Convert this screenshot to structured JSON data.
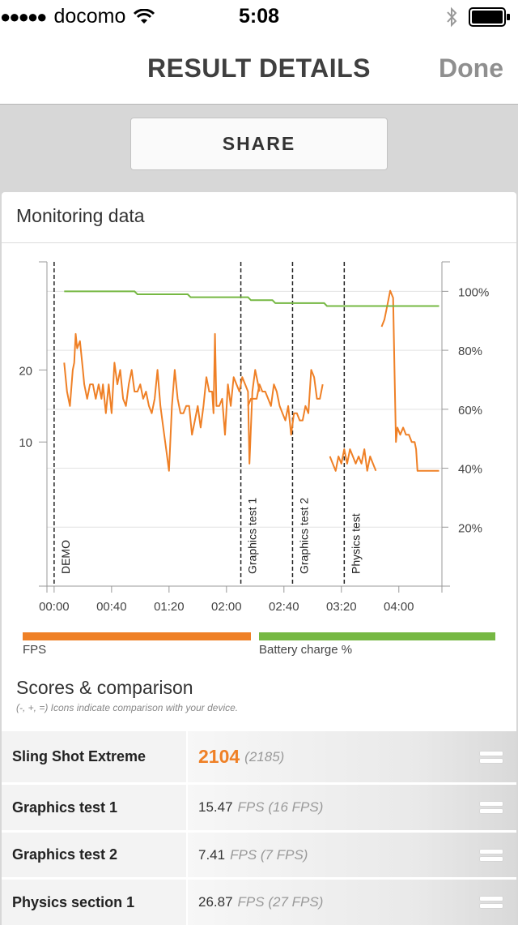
{
  "status_bar": {
    "signal": "●●●●●",
    "carrier": "docomo",
    "time": "5:08"
  },
  "nav": {
    "title": "RESULT DETAILS",
    "done": "Done"
  },
  "share_button": "SHARE",
  "monitoring": {
    "title": "Monitoring data"
  },
  "chart_data": {
    "type": "line",
    "x_ticks": [
      "00:00",
      "00:40",
      "01:20",
      "02:00",
      "02:40",
      "03:20",
      "04:00"
    ],
    "y_left_ticks": [
      "10",
      "20"
    ],
    "y_right_ticks": [
      "20%",
      "40%",
      "60%",
      "80%",
      "100%"
    ],
    "x_range_seconds": [
      -5,
      270
    ],
    "y_left_range": [
      -10,
      35
    ],
    "y_right_range": [
      0,
      110
    ],
    "markers": [
      {
        "label": "DEMO",
        "time": "00:00"
      },
      {
        "label": "Graphics test 1",
        "time": "02:10"
      },
      {
        "label": "Graphics test 2",
        "time": "02:46"
      },
      {
        "label": "Physics test",
        "time": "03:22"
      }
    ],
    "series": [
      {
        "name": "FPS",
        "color": "#ef8026",
        "segments": [
          [
            [
              7,
              21
            ],
            [
              9,
              17
            ],
            [
              11,
              15
            ],
            [
              13,
              20
            ],
            [
              14,
              21
            ],
            [
              15,
              25
            ],
            [
              16,
              23
            ],
            [
              18,
              24
            ],
            [
              20,
              20
            ],
            [
              21,
              18
            ],
            [
              23,
              16
            ],
            [
              25,
              18
            ],
            [
              27,
              18
            ],
            [
              29,
              16
            ],
            [
              31,
              18
            ],
            [
              33,
              16
            ],
            [
              34,
              18
            ],
            [
              36,
              14
            ],
            [
              38,
              18
            ],
            [
              40,
              14
            ],
            [
              42,
              21
            ],
            [
              44,
              18
            ],
            [
              46,
              20
            ],
            [
              48,
              16
            ],
            [
              50,
              15
            ],
            [
              52,
              18
            ],
            [
              54,
              20
            ],
            [
              56,
              17
            ],
            [
              58,
              17
            ],
            [
              60,
              18
            ],
            [
              62,
              16
            ],
            [
              64,
              17
            ],
            [
              66,
              15
            ],
            [
              68,
              14
            ],
            [
              70,
              16
            ],
            [
              72,
              20
            ],
            [
              74,
              15
            ],
            [
              76,
              12
            ],
            [
              78,
              9
            ],
            [
              80,
              6
            ],
            [
              82,
              15
            ],
            [
              84,
              20
            ],
            [
              86,
              16
            ],
            [
              88,
              14
            ],
            [
              90,
              14
            ],
            [
              92,
              15
            ],
            [
              94,
              15
            ],
            [
              96,
              11
            ],
            [
              98,
              13
            ],
            [
              100,
              15
            ],
            [
              102,
              12
            ],
            [
              104,
              15
            ],
            [
              106,
              19
            ],
            [
              108,
              17
            ],
            [
              110,
              17
            ],
            [
              111,
              14
            ],
            [
              112,
              25
            ],
            [
              113,
              15
            ],
            [
              115,
              15
            ],
            [
              117,
              16
            ],
            [
              119,
              11
            ],
            [
              121,
              18
            ],
            [
              123,
              15
            ],
            [
              125,
              19
            ],
            [
              127,
              18
            ],
            [
              129,
              17
            ],
            [
              131,
              19
            ],
            [
              133,
              18
            ],
            [
              135,
              17
            ],
            [
              136,
              7
            ],
            [
              138,
              17
            ],
            [
              140,
              20
            ],
            [
              142,
              18
            ],
            [
              143,
              17
            ]
          ],
          [
            [
              135,
              15
            ],
            [
              137,
              16
            ],
            [
              139,
              16
            ],
            [
              141,
              16
            ],
            [
              143,
              18
            ],
            [
              145,
              17
            ],
            [
              147,
              17
            ],
            [
              149,
              16
            ],
            [
              151,
              15
            ],
            [
              153,
              18
            ],
            [
              155,
              17
            ],
            [
              157,
              15
            ],
            [
              159,
              14
            ],
            [
              161,
              13
            ],
            [
              163,
              15
            ],
            [
              165,
              11
            ],
            [
              167,
              14
            ],
            [
              169,
              14
            ],
            [
              171,
              13
            ],
            [
              173,
              13
            ],
            [
              175,
              15
            ],
            [
              177,
              14
            ],
            [
              179,
              20
            ],
            [
              181,
              19
            ],
            [
              183,
              16
            ],
            [
              185,
              16
            ],
            [
              187,
              18
            ]
          ],
          [
            [
              192,
              8
            ],
            [
              194,
              7
            ],
            [
              196,
              6
            ],
            [
              198,
              8
            ],
            [
              200,
              7
            ],
            [
              202,
              9
            ],
            [
              204,
              7
            ],
            [
              206,
              9
            ],
            [
              208,
              8
            ],
            [
              210,
              7
            ],
            [
              212,
              8
            ],
            [
              214,
              7
            ],
            [
              216,
              9
            ],
            [
              218,
              6
            ],
            [
              220,
              8
            ],
            [
              222,
              7
            ],
            [
              224,
              6
            ]
          ],
          [
            [
              228,
              26
            ],
            [
              230,
              27
            ],
            [
              232,
              29
            ],
            [
              234,
              31
            ],
            [
              236,
              30
            ],
            [
              237,
              20
            ],
            [
              238,
              10
            ],
            [
              239,
              12
            ],
            [
              241,
              11
            ],
            [
              243,
              12
            ],
            [
              245,
              11
            ],
            [
              247,
              11
            ],
            [
              249,
              10
            ],
            [
              251,
              10
            ],
            [
              252,
              9
            ],
            [
              253,
              6
            ],
            [
              255,
              6
            ],
            [
              258,
              6
            ],
            [
              262,
              6
            ],
            [
              265,
              6
            ],
            [
              268,
              6
            ]
          ]
        ]
      },
      {
        "name": "Battery charge %",
        "color": "#76b843",
        "points": [
          [
            7,
            100
          ],
          [
            56,
            100
          ],
          [
            58,
            99
          ],
          [
            93,
            99
          ],
          [
            95,
            98
          ],
          [
            135,
            98
          ],
          [
            137,
            97
          ],
          [
            152,
            97
          ],
          [
            154,
            96
          ],
          [
            188,
            96
          ],
          [
            190,
            95
          ],
          [
            268,
            95
          ]
        ]
      }
    ]
  },
  "legend": {
    "fps": "FPS",
    "battery": "Battery charge %"
  },
  "scores": {
    "title": "Scores & comparison",
    "subtitle": "(-, +, =) Icons indicate comparison with your device.",
    "rows": [
      {
        "name": "Sling Shot Extreme",
        "score": "2104",
        "prev": "(2185)",
        "icon": "equal-icon"
      },
      {
        "name": "Graphics test 1",
        "value": "15.47",
        "unit": "FPS (16 FPS)",
        "icon": "equal-icon"
      },
      {
        "name": "Graphics test 2",
        "value": "7.41",
        "unit": "FPS (7 FPS)",
        "icon": "equal-icon"
      },
      {
        "name": "Physics section 1",
        "value": "26.87",
        "unit": "FPS (27 FPS)",
        "icon": "equal-icon"
      }
    ]
  },
  "colors": {
    "fps": "#ef8026",
    "battery": "#76b843",
    "accent": "#ef8026"
  }
}
